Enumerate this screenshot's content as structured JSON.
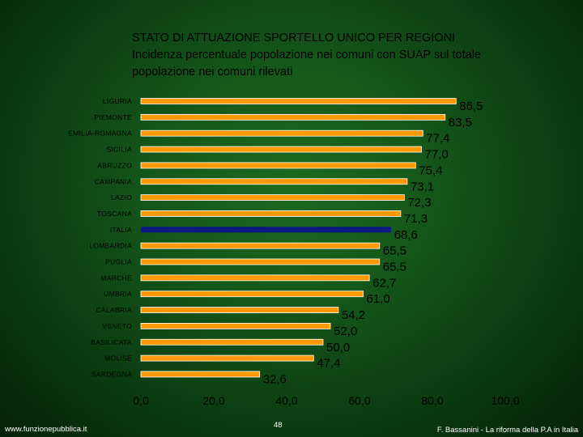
{
  "title_lines": [
    "STATO DI ATTUAZIONE SPORTELLO UNICO PER REGIONI",
    "Incidenza percentuale popolazione nei comuni con SUAP sul totale",
    "popolazione nei comuni rilevati"
  ],
  "footer": {
    "left": "www.funzionepubblica.it",
    "page": "48",
    "right": "F. Bassanini - La riforma della P.A in Italia"
  },
  "colors": {
    "bar": "#ff9900",
    "bar_highlight": "#0a1a80",
    "bar_outline": "#ffffff"
  },
  "chart_data": {
    "type": "bar",
    "orientation": "horizontal",
    "categories": [
      "LIGURIA",
      "PIEMONTE",
      "EMILIA-ROMAGNA",
      "SICILIA",
      "ABRUZZO",
      "CAMPANIA",
      "LAZIO",
      "TOSCANA",
      "ITALIA",
      "LOMBARDIA",
      "PUGLIA",
      "MARCHE",
      "UMBRIA",
      "CALABRIA",
      "VENETO",
      "BASILICATA",
      "MOLISE",
      "SARDEGNA"
    ],
    "values": [
      86.5,
      83.5,
      77.4,
      77.0,
      75.4,
      73.1,
      72.3,
      71.3,
      68.6,
      65.5,
      65.5,
      62.7,
      61.0,
      54.2,
      52.0,
      50.0,
      47.4,
      32.6
    ],
    "value_labels": [
      "86,5",
      "83,5",
      "77,4",
      "77,0",
      "75,4",
      "73,1",
      "72,3",
      "71,3",
      "68,6",
      "65,5",
      "65,5",
      "62,7",
      "61,0",
      "54,2",
      "52,0",
      "50,0",
      "47,4",
      "32,6"
    ],
    "highlight_category": "ITALIA",
    "xlim": [
      0,
      100
    ],
    "x_ticks": [
      0,
      20,
      40,
      60,
      80,
      100
    ],
    "x_tick_labels": [
      "0,0",
      "20,0",
      "40,0",
      "60,0",
      "80,0",
      "100,0"
    ],
    "grid": false
  }
}
